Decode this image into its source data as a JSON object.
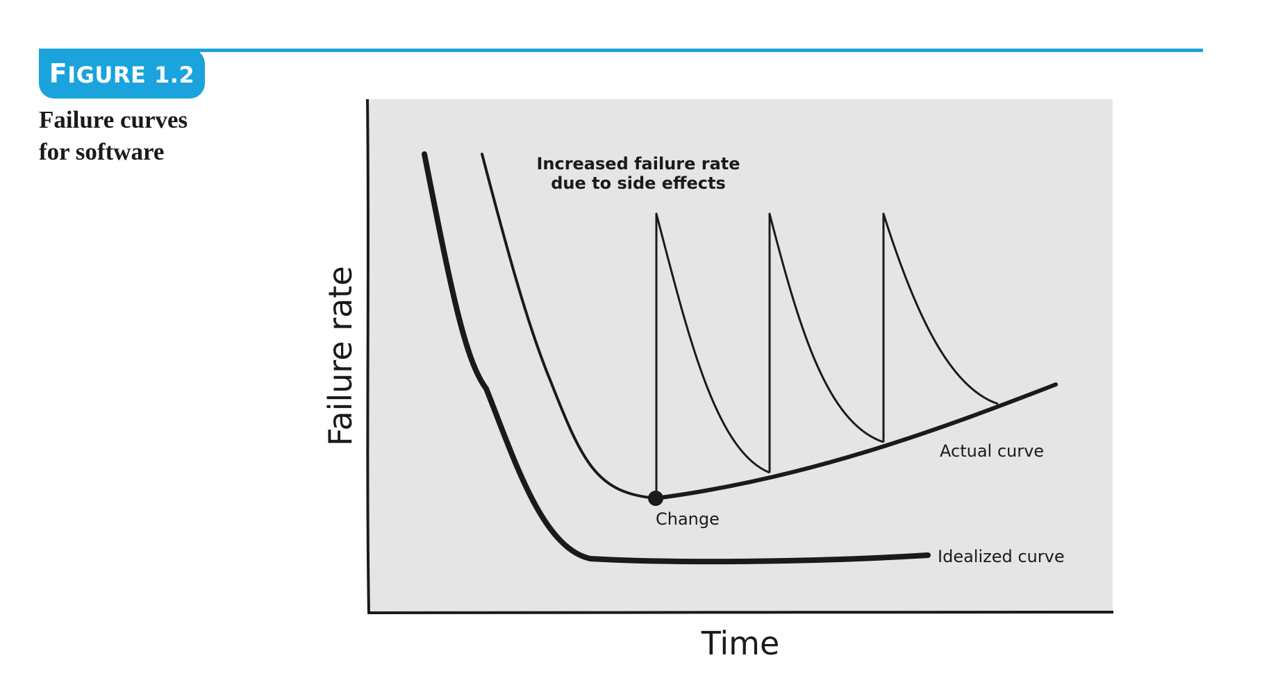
{
  "header": {
    "badge_prefix": "F",
    "badge_rest": "IGURE 1.2",
    "caption_line1": "Failure curves",
    "caption_line2": "for software"
  },
  "colors": {
    "accent": "#1aa3dc",
    "plot_background": "#e5e5e5",
    "ink": "#1a1a1a"
  },
  "diagram": {
    "y_axis_label": "Failure rate",
    "x_axis_label": "Time",
    "annotation_line1": "Increased failure rate",
    "annotation_line2": "due to side effects",
    "actual_curve_label": "Actual curve",
    "idealized_curve_label": "Idealized curve",
    "change_label": "Change"
  }
}
